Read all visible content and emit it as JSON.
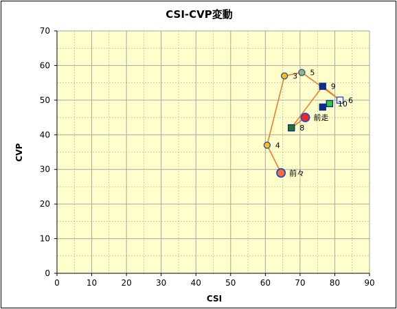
{
  "chart_data": {
    "type": "scatter",
    "title": "CSI-CVP変動",
    "xlabel": "CSI",
    "ylabel": "CVP",
    "xlim": [
      0,
      90
    ],
    "ylim": [
      0,
      70
    ],
    "x_major_step": 10,
    "x_minor_step": 5,
    "y_major_step": 10,
    "y_minor_step": 5,
    "x_ticks": [
      "0",
      "10",
      "20",
      "30",
      "40",
      "50",
      "60",
      "70",
      "80",
      "90"
    ],
    "y_ticks": [
      "0",
      "10",
      "20",
      "30",
      "40",
      "50",
      "60",
      "70"
    ],
    "grid": true,
    "legend": "none",
    "colors": {
      "plot_background": "#FFFFCC",
      "grid": "#A6A6A6",
      "line": "#F07C2A",
      "circle_fill": "#FFC000",
      "circle_border": "#2B4FBF",
      "olive_fill": "#9BBB59",
      "green_square": "#33CC33",
      "navy_square": "#0B2F8F",
      "open_square": "#FFFFFF",
      "red_marker": "#FF2020"
    },
    "path": [
      "前々",
      "4",
      "3",
      "5",
      "6",
      "9",
      "8",
      "前走"
    ],
    "points": [
      {
        "label": "前々",
        "x": 64.5,
        "y": 29,
        "marker": "circle-large",
        "fill": "#FF6A3D"
      },
      {
        "label": "4",
        "x": 60.5,
        "y": 37,
        "marker": "circle",
        "fill": "#FFC000"
      },
      {
        "label": "3",
        "x": 65.5,
        "y": 57,
        "marker": "circle",
        "fill": "#FFC000"
      },
      {
        "label": "5",
        "x": 70.5,
        "y": 58,
        "marker": "circle",
        "fill": "#9BBB59"
      },
      {
        "label": "6",
        "x": 81.5,
        "y": 50,
        "marker": "square-open",
        "fill": "#FFFFFF"
      },
      {
        "label": "9",
        "x": 76.5,
        "y": 54,
        "marker": "square",
        "fill": "#0B2F8F"
      },
      {
        "label": "8",
        "x": 67.5,
        "y": 42,
        "marker": "square-green",
        "fill": "#1F7A1F"
      },
      {
        "label": "10",
        "x": 78.5,
        "y": 49,
        "marker": "square-green",
        "fill": "#33CC33"
      },
      {
        "label": "",
        "x": 76.5,
        "y": 48,
        "marker": "square",
        "fill": "#0B2F8F"
      },
      {
        "label": "前走",
        "x": 71.5,
        "y": 45,
        "marker": "circle-large",
        "fill": "#FF2020"
      }
    ]
  }
}
